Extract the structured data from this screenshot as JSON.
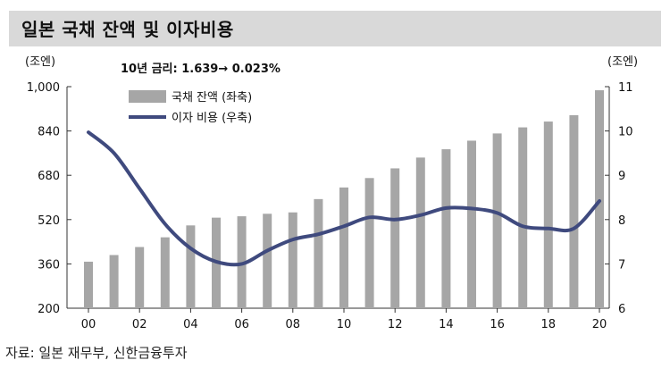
{
  "title": "일본 국채 잔액 및 이자비용",
  "source": "자료: 일본 재무부, 신한금융투자",
  "chart_data": {
    "type": "bar",
    "annotation": "10년 금리: 1.639→ 0.023%",
    "left_unit": "(조엔)",
    "right_unit": "(조엔)",
    "x_tick_labels": [
      "00",
      "02",
      "04",
      "06",
      "08",
      "10",
      "12",
      "14",
      "16",
      "18",
      "20"
    ],
    "ylim_left": [
      200,
      1000
    ],
    "ylim_right": [
      6,
      11
    ],
    "y_left_ticks": [
      "200",
      "360",
      "520",
      "680",
      "840",
      "1,000"
    ],
    "y_right_ticks": [
      "6",
      "7",
      "8",
      "9",
      "10",
      "11"
    ],
    "categories": [
      "00",
      "01",
      "02",
      "03",
      "04",
      "05",
      "06",
      "07",
      "08",
      "09",
      "10",
      "11",
      "12",
      "13",
      "14",
      "15",
      "16",
      "17",
      "18",
      "19",
      "20"
    ],
    "series": [
      {
        "name": "국채 잔액 (좌축)",
        "type": "bar",
        "axis": "left",
        "color": "#a6a6a6",
        "values": [
          368,
          392,
          421,
          456,
          499,
          527,
          532,
          541,
          546,
          594,
          636,
          670,
          705,
          744,
          774,
          805,
          831,
          853,
          874,
          897,
          987
        ]
      },
      {
        "name": "이자 비용 (우축)",
        "type": "line",
        "axis": "right",
        "color": "#3f4a7e",
        "values": [
          9.97,
          9.5,
          8.7,
          7.9,
          7.35,
          7.05,
          7.0,
          7.3,
          7.55,
          7.67,
          7.85,
          8.05,
          8.0,
          8.1,
          8.26,
          8.25,
          8.15,
          7.85,
          7.8,
          7.8,
          8.42
        ]
      }
    ],
    "legend_position": "top-left",
    "grid": false
  }
}
